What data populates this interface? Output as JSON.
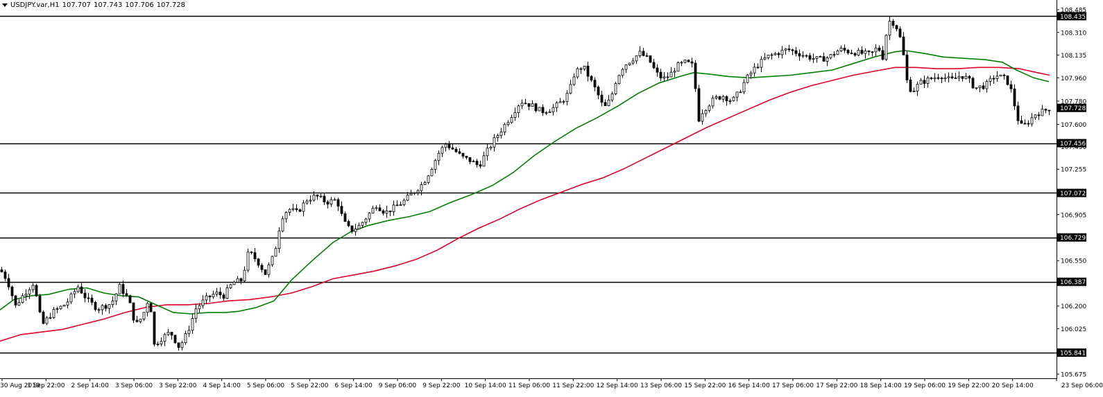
{
  "header": {
    "symbol": "USDJPY.var,H1",
    "open": "107.707",
    "high": "107.743",
    "low": "107.706",
    "close": "107.728"
  },
  "colors": {
    "background": "#ffffff",
    "candle": "#000000",
    "ma_fast": "#008000",
    "ma_slow": "#e0002a",
    "hline": "#000000",
    "price_tag": "#000000"
  },
  "chart_data": {
    "type": "candlestick",
    "symbol": "USDJPY.var",
    "timeframe": "H1",
    "ylim": [
      105.675,
      108.485
    ],
    "y_ticks": [
      "108.485",
      "108.310",
      "108.135",
      "107.960",
      "107.780",
      "107.600",
      "107.430",
      "107.255",
      "107.080",
      "106.905",
      "106.725",
      "106.550",
      "106.375",
      "106.200",
      "106.025",
      "105.850",
      "105.675"
    ],
    "x_ticks": [
      "30 Aug 2019",
      "1 Sep 22:00",
      "2 Sep 14:00",
      "3 Sep 06:00",
      "3 Sep 22:00",
      "4 Sep 14:00",
      "5 Sep 06:00",
      "5 Sep 22:00",
      "6 Sep 14:00",
      "9 Sep 06:00",
      "9 Sep 22:00",
      "10 Sep 14:00",
      "11 Sep 06:00",
      "11 Sep 22:00",
      "12 Sep 14:00",
      "13 Sep 06:00",
      "15 Sep 22:00",
      "16 Sep 14:00",
      "17 Sep 06:00",
      "17 Sep 22:00",
      "18 Sep 14:00",
      "19 Sep 06:00",
      "19 Sep 22:00",
      "20 Sep 14:00",
      "23 Sep 06:00"
    ],
    "horizontal_levels": [
      "108.435",
      "107.456",
      "107.072",
      "106.729",
      "106.387",
      "105.841"
    ],
    "current_price": "107.728",
    "close_path": [
      [
        0,
        106.48
      ],
      [
        10,
        106.4
      ],
      [
        22,
        106.2
      ],
      [
        35,
        106.3
      ],
      [
        48,
        106.38
      ],
      [
        60,
        106.05
      ],
      [
        75,
        106.15
      ],
      [
        95,
        106.22
      ],
      [
        112,
        106.35
      ],
      [
        125,
        106.25
      ],
      [
        140,
        106.18
      ],
      [
        160,
        106.22
      ],
      [
        172,
        106.35
      ],
      [
        185,
        106.25
      ],
      [
        195,
        106.05
      ],
      [
        205,
        106.12
      ],
      [
        215,
        106.28
      ],
      [
        222,
        105.9
      ],
      [
        232,
        105.95
      ],
      [
        245,
        106.0
      ],
      [
        258,
        105.88
      ],
      [
        270,
        106.0
      ],
      [
        282,
        106.18
      ],
      [
        295,
        106.25
      ],
      [
        310,
        106.3
      ],
      [
        322,
        106.28
      ],
      [
        335,
        106.38
      ],
      [
        348,
        106.4
      ],
      [
        358,
        106.62
      ],
      [
        370,
        106.55
      ],
      [
        382,
        106.45
      ],
      [
        395,
        106.6
      ],
      [
        405,
        106.88
      ],
      [
        415,
        106.95
      ],
      [
        428,
        106.92
      ],
      [
        442,
        107.02
      ],
      [
        455,
        107.05
      ],
      [
        470,
        107.0
      ],
      [
        485,
        107.02
      ],
      [
        495,
        106.85
      ],
      [
        505,
        106.78
      ],
      [
        518,
        106.82
      ],
      [
        530,
        106.9
      ],
      [
        542,
        106.98
      ],
      [
        555,
        106.92
      ],
      [
        568,
        106.96
      ],
      [
        580,
        107.0
      ],
      [
        590,
        107.05
      ],
      [
        600,
        107.1
      ],
      [
        610,
        107.15
      ],
      [
        620,
        107.25
      ],
      [
        632,
        107.38
      ],
      [
        642,
        107.45
      ],
      [
        655,
        107.4
      ],
      [
        665,
        107.35
      ],
      [
        678,
        107.32
      ],
      [
        690,
        107.28
      ],
      [
        700,
        107.38
      ],
      [
        712,
        107.48
      ],
      [
        725,
        107.58
      ],
      [
        738,
        107.68
      ],
      [
        750,
        107.78
      ],
      [
        765,
        107.75
      ],
      [
        780,
        107.7
      ],
      [
        795,
        107.72
      ],
      [
        810,
        107.78
      ],
      [
        820,
        107.85
      ],
      [
        828,
        108.0
      ],
      [
        840,
        108.05
      ],
      [
        850,
        107.95
      ],
      [
        860,
        107.85
      ],
      [
        870,
        107.72
      ],
      [
        880,
        107.8
      ],
      [
        888,
        107.95
      ],
      [
        898,
        108.05
      ],
      [
        910,
        108.1
      ],
      [
        922,
        108.15
      ],
      [
        935,
        108.1
      ],
      [
        945,
        108.0
      ],
      [
        955,
        107.95
      ],
      [
        965,
        107.98
      ],
      [
        975,
        108.05
      ],
      [
        988,
        108.08
      ],
      [
        1000,
        108.05
      ],
      [
        1005,
        107.62
      ],
      [
        1012,
        107.7
      ],
      [
        1020,
        107.75
      ],
      [
        1030,
        107.8
      ],
      [
        1042,
        107.82
      ],
      [
        1055,
        107.78
      ],
      [
        1065,
        107.85
      ],
      [
        1075,
        107.95
      ],
      [
        1090,
        108.05
      ],
      [
        1105,
        108.12
      ],
      [
        1120,
        108.15
      ],
      [
        1135,
        108.18
      ],
      [
        1150,
        108.15
      ],
      [
        1165,
        108.12
      ],
      [
        1180,
        108.1
      ],
      [
        1195,
        108.12
      ],
      [
        1210,
        108.18
      ],
      [
        1225,
        108.16
      ],
      [
        1240,
        108.15
      ],
      [
        1255,
        108.14
      ],
      [
        1265,
        108.2
      ],
      [
        1272,
        108.12
      ],
      [
        1280,
        108.4
      ],
      [
        1290,
        108.38
      ],
      [
        1300,
        108.22
      ],
      [
        1306,
        107.95
      ],
      [
        1314,
        107.85
      ],
      [
        1325,
        107.92
      ],
      [
        1340,
        107.95
      ],
      [
        1355,
        107.98
      ],
      [
        1370,
        107.94
      ],
      [
        1385,
        107.98
      ],
      [
        1395,
        107.95
      ],
      [
        1405,
        107.88
      ],
      [
        1420,
        107.9
      ],
      [
        1435,
        107.98
      ],
      [
        1450,
        107.95
      ],
      [
        1458,
        107.85
      ],
      [
        1466,
        107.65
      ],
      [
        1473,
        107.58
      ],
      [
        1482,
        107.62
      ],
      [
        1492,
        107.68
      ],
      [
        1502,
        107.7
      ],
      [
        1515,
        107.73
      ]
    ],
    "ma_fast_path": [
      [
        0,
        106.17
      ],
      [
        20,
        106.25
      ],
      [
        45,
        106.28
      ],
      [
        70,
        106.29
      ],
      [
        100,
        106.33
      ],
      [
        125,
        106.34
      ],
      [
        150,
        106.3
      ],
      [
        175,
        106.28
      ],
      [
        200,
        106.27
      ],
      [
        225,
        106.21
      ],
      [
        250,
        106.15
      ],
      [
        275,
        106.14
      ],
      [
        300,
        106.15
      ],
      [
        325,
        106.15
      ],
      [
        345,
        106.16
      ],
      [
        370,
        106.19
      ],
      [
        395,
        106.24
      ],
      [
        420,
        106.4
      ],
      [
        450,
        106.55
      ],
      [
        480,
        106.69
      ],
      [
        505,
        106.77
      ],
      [
        530,
        106.82
      ],
      [
        560,
        106.86
      ],
      [
        590,
        106.89
      ],
      [
        620,
        106.93
      ],
      [
        650,
        107.0
      ],
      [
        680,
        107.06
      ],
      [
        710,
        107.13
      ],
      [
        740,
        107.23
      ],
      [
        770,
        107.36
      ],
      [
        800,
        107.47
      ],
      [
        830,
        107.57
      ],
      [
        860,
        107.65
      ],
      [
        890,
        107.74
      ],
      [
        920,
        107.84
      ],
      [
        950,
        107.92
      ],
      [
        980,
        107.97
      ],
      [
        1000,
        108.0
      ],
      [
        1020,
        107.99
      ],
      [
        1050,
        107.97
      ],
      [
        1080,
        107.96
      ],
      [
        1110,
        107.97
      ],
      [
        1140,
        107.98
      ],
      [
        1170,
        108.0
      ],
      [
        1200,
        108.02
      ],
      [
        1230,
        108.07
      ],
      [
        1260,
        108.12
      ],
      [
        1290,
        108.16
      ],
      [
        1305,
        108.17
      ],
      [
        1330,
        108.15
      ],
      [
        1360,
        108.12
      ],
      [
        1390,
        108.11
      ],
      [
        1420,
        108.1
      ],
      [
        1445,
        108.08
      ],
      [
        1465,
        108.02
      ],
      [
        1490,
        107.96
      ],
      [
        1512,
        107.93
      ]
    ],
    "ma_slow_path": [
      [
        0,
        105.93
      ],
      [
        30,
        105.98
      ],
      [
        60,
        106.0
      ],
      [
        90,
        106.02
      ],
      [
        120,
        106.06
      ],
      [
        150,
        106.1
      ],
      [
        180,
        106.15
      ],
      [
        210,
        106.19
      ],
      [
        240,
        106.21
      ],
      [
        270,
        106.21
      ],
      [
        300,
        106.22
      ],
      [
        330,
        106.24
      ],
      [
        360,
        106.25
      ],
      [
        390,
        106.27
      ],
      [
        420,
        106.3
      ],
      [
        450,
        106.35
      ],
      [
        480,
        106.41
      ],
      [
        510,
        106.44
      ],
      [
        540,
        106.47
      ],
      [
        570,
        106.51
      ],
      [
        600,
        106.56
      ],
      [
        630,
        106.63
      ],
      [
        660,
        106.72
      ],
      [
        690,
        106.8
      ],
      [
        720,
        106.87
      ],
      [
        750,
        106.95
      ],
      [
        780,
        107.02
      ],
      [
        810,
        107.08
      ],
      [
        840,
        107.14
      ],
      [
        870,
        107.19
      ],
      [
        900,
        107.26
      ],
      [
        930,
        107.34
      ],
      [
        960,
        107.42
      ],
      [
        990,
        107.5
      ],
      [
        1020,
        107.58
      ],
      [
        1050,
        107.65
      ],
      [
        1080,
        107.72
      ],
      [
        1110,
        107.79
      ],
      [
        1140,
        107.85
      ],
      [
        1170,
        107.9
      ],
      [
        1200,
        107.94
      ],
      [
        1230,
        107.98
      ],
      [
        1260,
        108.01
      ],
      [
        1290,
        108.04
      ],
      [
        1320,
        108.04
      ],
      [
        1350,
        108.03
      ],
      [
        1380,
        108.03
      ],
      [
        1410,
        108.04
      ],
      [
        1440,
        108.04
      ],
      [
        1470,
        108.03
      ],
      [
        1495,
        108.0
      ],
      [
        1513,
        107.98
      ]
    ]
  }
}
